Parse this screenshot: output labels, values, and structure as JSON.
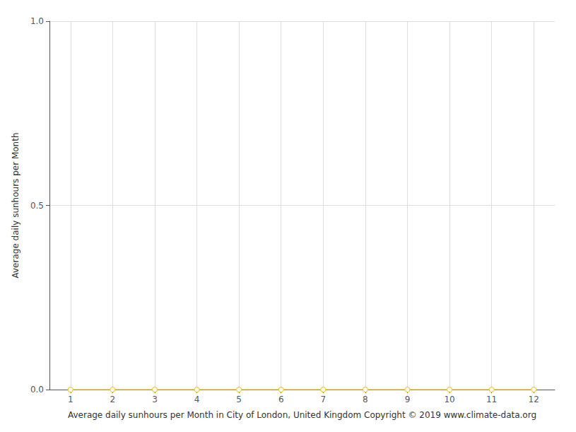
{
  "chart_data": {
    "type": "line",
    "x": [
      1,
      2,
      3,
      4,
      5,
      6,
      7,
      8,
      9,
      10,
      11,
      12
    ],
    "values": [
      0,
      0,
      0,
      0,
      0,
      0,
      0,
      0,
      0,
      0,
      0,
      0
    ],
    "color": "#f5c842",
    "marker": "circle",
    "xlabel": "Average daily sunhours per Month in City of London, United Kingdom Copyright © 2019 www.climate-data.org",
    "ylabel": "Average daily sunhours per Month",
    "xlim": [
      0.5,
      12.5
    ],
    "ylim": [
      0.0,
      1.0
    ],
    "xticks": [
      1,
      2,
      3,
      4,
      5,
      6,
      7,
      8,
      9,
      10,
      11,
      12
    ],
    "yticks": [
      {
        "value": 0.0,
        "label": "0.0"
      },
      {
        "value": 0.5,
        "label": "0.5"
      },
      {
        "value": 1.0,
        "label": "1.0"
      }
    ],
    "grid": true
  }
}
